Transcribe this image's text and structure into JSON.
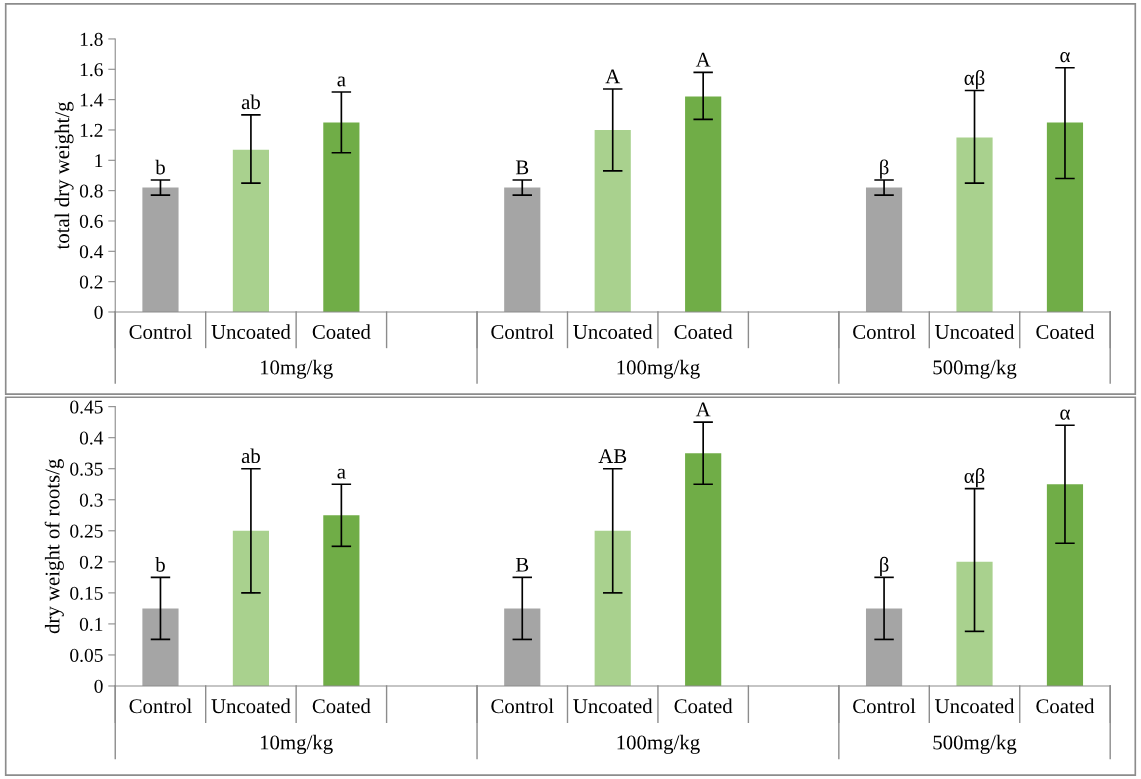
{
  "chart_data": [
    {
      "type": "bar",
      "ylabel": "total dry weight/g",
      "categories": [
        "Control",
        "Uncoated",
        "Coated",
        null,
        "Control",
        "Uncoated",
        "Coated",
        null,
        "Control",
        "Uncoated",
        "Coated"
      ],
      "values": [
        0.82,
        1.07,
        1.25,
        null,
        0.82,
        1.2,
        1.42,
        null,
        0.82,
        1.15,
        1.25
      ],
      "colors": [
        "#a5a5a5",
        "#a9d18e",
        "#70ad47",
        "#ffffff",
        "#a5a5a5",
        "#a9d18e",
        "#70ad47",
        "#ffffff",
        "#a5a5a5",
        "#a9d18e",
        "#70ad47"
      ],
      "errors": [
        [
          0.77,
          0.87
        ],
        [
          0.85,
          1.3
        ],
        [
          1.05,
          1.45
        ],
        null,
        [
          0.77,
          0.87
        ],
        [
          0.93,
          1.47
        ],
        [
          1.27,
          1.58
        ],
        null,
        [
          0.77,
          0.87
        ],
        [
          0.85,
          1.46
        ],
        [
          0.88,
          1.61
        ]
      ],
      "ylim": [
        0,
        1.8
      ],
      "yticks": [
        0,
        0.2,
        0.4,
        0.6,
        0.8,
        1,
        1.2,
        1.4,
        1.6,
        1.8
      ],
      "annotations": [
        "b",
        "ab",
        "a",
        "B",
        "A",
        "A",
        "β",
        "αβ",
        "α",
        "10mg/kg",
        "100mg/kg",
        "500mg/kg"
      ]
    },
    {
      "type": "bar",
      "ylabel": "dry weight of roots/g",
      "categories": [
        "Control",
        "Uncoated",
        "Coated",
        null,
        "Control",
        "Uncoated",
        "Coated",
        null,
        "Control",
        "Uncoated",
        "Coated"
      ],
      "values": [
        0.125,
        0.25,
        0.275,
        null,
        0.125,
        0.25,
        0.375,
        null,
        0.125,
        0.2,
        0.325
      ],
      "colors": [
        "#a5a5a5",
        "#a9d18e",
        "#70ad47",
        "#ffffff",
        "#a5a5a5",
        "#a9d18e",
        "#70ad47",
        "#ffffff",
        "#a5a5a5",
        "#a9d18e",
        "#70ad47"
      ],
      "errors": [
        [
          0.075,
          0.175
        ],
        [
          0.15,
          0.35
        ],
        [
          0.225,
          0.325
        ],
        null,
        [
          0.075,
          0.175
        ],
        [
          0.15,
          0.35
        ],
        [
          0.325,
          0.425
        ],
        null,
        [
          0.075,
          0.175
        ],
        [
          0.088,
          0.318
        ],
        [
          0.23,
          0.42
        ]
      ],
      "ylim": [
        0,
        0.45
      ],
      "yticks": [
        0,
        0.05,
        0.1,
        0.15,
        0.2,
        0.25,
        0.3,
        0.35,
        0.4,
        0.45
      ],
      "annotations": [
        "b",
        "ab",
        "a",
        "B",
        "AB",
        "A",
        "β",
        "αβ",
        "α",
        "10mg/kg",
        "100mg/kg",
        "500mg/kg"
      ]
    }
  ]
}
